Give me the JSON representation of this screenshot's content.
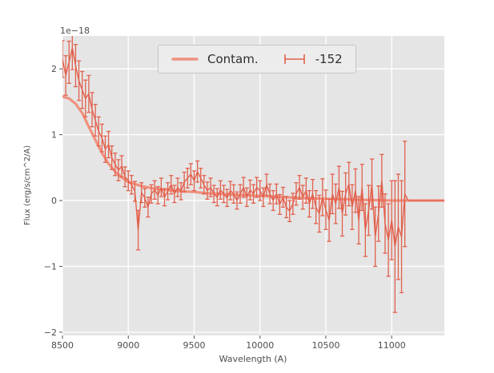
{
  "chart_data": {
    "type": "line",
    "title": "",
    "xlabel": "Wavelength (A)",
    "ylabel": "Flux (erg/s/cm^2/A)",
    "y_offset_label": "1e−18",
    "xlim": [
      8500,
      11400
    ],
    "ylim": [
      -2.05,
      2.5
    ],
    "xticks": [
      8500,
      9000,
      9500,
      10000,
      10500,
      11000
    ],
    "yticks": [
      -2,
      -1,
      0,
      1,
      2
    ],
    "grid": true,
    "background": "#e5e5e5",
    "grid_color": "#ffffff",
    "tick_color": "#555555",
    "legend_position": "upper center",
    "series": [
      {
        "name": "Contam.",
        "kind": "line",
        "color": "#f0917e",
        "linewidth": 3.2,
        "x": [
          8500,
          8550,
          8600,
          8650,
          8700,
          8750,
          8800,
          8850,
          8900,
          8950,
          9000,
          9100,
          9200,
          9300,
          9400,
          9500,
          9600,
          9700,
          9800,
          9900,
          10000,
          10200,
          10400,
          10600,
          10800,
          11000,
          11200,
          11400
        ],
        "y": [
          1.58,
          1.55,
          1.47,
          1.33,
          1.12,
          0.92,
          0.72,
          0.56,
          0.44,
          0.35,
          0.28,
          0.22,
          0.18,
          0.16,
          0.14,
          0.13,
          0.11,
          0.1,
          0.09,
          0.08,
          0.07,
          0.05,
          0.03,
          0.02,
          0.01,
          0.0,
          0.0,
          0.0
        ]
      },
      {
        "name": "-152",
        "kind": "errorbar",
        "color": "#e2604c",
        "linewidth": 1.4,
        "x": [
          8500,
          8525,
          8550,
          8575,
          8600,
          8625,
          8650,
          8675,
          8700,
          8725,
          8750,
          8775,
          8800,
          8825,
          8850,
          8875,
          8900,
          8925,
          8950,
          8975,
          9000,
          9025,
          9050,
          9075,
          9100,
          9125,
          9150,
          9175,
          9200,
          9225,
          9250,
          9275,
          9300,
          9325,
          9350,
          9375,
          9400,
          9425,
          9450,
          9475,
          9500,
          9525,
          9550,
          9575,
          9600,
          9625,
          9650,
          9675,
          9700,
          9725,
          9750,
          9775,
          9800,
          9825,
          9850,
          9875,
          9900,
          9925,
          9950,
          9975,
          10000,
          10025,
          10050,
          10075,
          10100,
          10125,
          10150,
          10175,
          10200,
          10225,
          10250,
          10275,
          10300,
          10325,
          10350,
          10375,
          10400,
          10425,
          10450,
          10475,
          10500,
          10525,
          10550,
          10575,
          10600,
          10625,
          10650,
          10675,
          10700,
          10725,
          10750,
          10775,
          10800,
          10825,
          10850,
          10875,
          10900,
          10925,
          10950,
          10975,
          11000,
          11025,
          11050,
          11075,
          11100,
          11125,
          11400
        ],
        "y": [
          2.15,
          1.9,
          2.1,
          2.32,
          2.05,
          1.82,
          1.68,
          1.55,
          1.62,
          1.38,
          1.22,
          1.05,
          0.95,
          0.78,
          0.85,
          0.65,
          0.55,
          0.46,
          0.52,
          0.36,
          0.3,
          0.24,
          0.14,
          -0.45,
          0.12,
          0.04,
          -0.1,
          0.1,
          0.16,
          0.08,
          0.2,
          0.05,
          0.14,
          0.24,
          0.1,
          0.2,
          0.14,
          0.28,
          0.34,
          0.4,
          0.3,
          0.44,
          0.34,
          0.24,
          0.15,
          0.2,
          0.1,
          0.05,
          0.16,
          0.1,
          0.04,
          0.15,
          0.1,
          0.0,
          0.1,
          0.2,
          0.05,
          0.16,
          0.1,
          0.2,
          0.15,
          0.05,
          0.24,
          0.1,
          0.0,
          0.1,
          -0.06,
          0.05,
          -0.1,
          -0.16,
          -0.05,
          0.1,
          0.2,
          0.05,
          0.15,
          -0.05,
          0.1,
          -0.1,
          -0.2,
          0.05,
          -0.14,
          -0.3,
          0.1,
          -0.05,
          0.2,
          -0.2,
          0.1,
          0.25,
          -0.1,
          0.15,
          -0.3,
          0.2,
          -0.45,
          -0.15,
          0.25,
          -0.55,
          -0.2,
          0.3,
          -0.35,
          -0.6,
          -0.3,
          -0.7,
          -0.4,
          -0.55,
          0.1,
          0.0,
          0.0
        ],
        "yerr": [
          0.28,
          0.3,
          0.32,
          0.33,
          0.32,
          0.3,
          0.28,
          0.28,
          0.28,
          0.26,
          0.24,
          0.22,
          0.21,
          0.2,
          0.2,
          0.18,
          0.17,
          0.16,
          0.16,
          0.15,
          0.15,
          0.14,
          0.15,
          0.3,
          0.15,
          0.14,
          0.15,
          0.14,
          0.14,
          0.13,
          0.14,
          0.13,
          0.13,
          0.14,
          0.13,
          0.14,
          0.13,
          0.15,
          0.15,
          0.16,
          0.15,
          0.16,
          0.15,
          0.14,
          0.13,
          0.14,
          0.13,
          0.13,
          0.14,
          0.13,
          0.13,
          0.14,
          0.14,
          0.13,
          0.14,
          0.15,
          0.14,
          0.15,
          0.14,
          0.15,
          0.15,
          0.14,
          0.16,
          0.15,
          0.15,
          0.15,
          0.15,
          0.15,
          0.16,
          0.16,
          0.16,
          0.17,
          0.18,
          0.18,
          0.19,
          0.2,
          0.22,
          0.25,
          0.28,
          0.28,
          0.3,
          0.32,
          0.3,
          0.3,
          0.32,
          0.34,
          0.32,
          0.33,
          0.34,
          0.33,
          0.36,
          0.35,
          0.4,
          0.38,
          0.38,
          0.45,
          0.42,
          0.4,
          0.45,
          0.55,
          0.6,
          1.0,
          0.8,
          0.85,
          0.8,
          0,
          0
        ]
      }
    ]
  }
}
